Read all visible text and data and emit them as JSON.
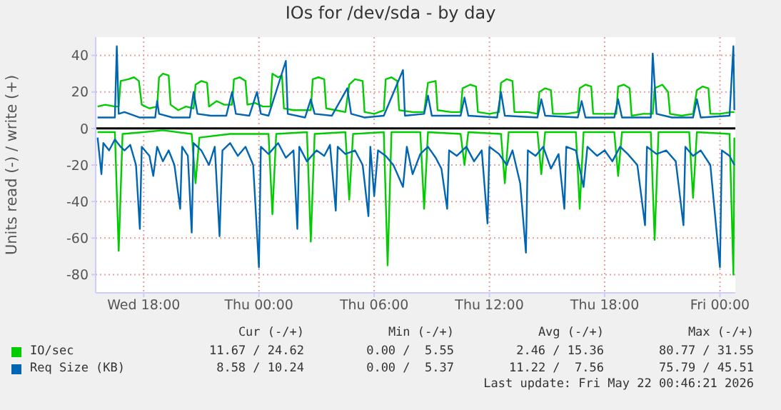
{
  "chart_data": {
    "type": "line",
    "title": "IOs for /dev/sda - by day",
    "ylabel": "Units read (-) / write (+)",
    "xlim": [
      "2026-05-20T15:30",
      "2026-05-22T00:48"
    ],
    "xticks": [
      {
        "value": "2026-05-20T18:00",
        "label": "Wed 18:00"
      },
      {
        "value": "2026-05-21T00:00",
        "label": "Thu 00:00"
      },
      {
        "value": "2026-05-21T06:00",
        "label": "Thu 06:00"
      },
      {
        "value": "2026-05-21T12:00",
        "label": "Thu 12:00"
      },
      {
        "value": "2026-05-21T18:00",
        "label": "Thu 18:00"
      },
      {
        "value": "2026-05-22T00:00",
        "label": "Fri 00:00"
      }
    ],
    "ylim": [
      -90,
      50
    ],
    "yticks": [
      -80,
      -60,
      -40,
      -20,
      0,
      20,
      40
    ],
    "grid": true,
    "legend": "bottom",
    "marker": "none",
    "line_style": "solid",
    "ref_lines": [
      {
        "axis": "y",
        "value": 0,
        "color": "#000000"
      }
    ],
    "annotations": [
      "Cur (-/+)",
      "Min (-/+)",
      "Avg (-/+)",
      "Max (-/+)",
      "11.67 / 24.62",
      "0.00 /  5.55",
      "2.46 / 15.36",
      "80.77 / 31.55",
      "8.58 / 10.24",
      "0.00 /  5.37",
      "11.22 /  7.56",
      "75.79 / 45.51",
      "Last update: Fri May 22 00:46:21 2026"
    ],
    "series": [
      {
        "name": "IO/sec",
        "color": "#00cc00",
        "x": [
          "2026-05-20T15:36",
          "2026-05-20T16:00",
          "2026-05-20T16:30",
          "2026-05-20T16:42",
          "2026-05-20T16:48",
          "2026-05-20T17:12",
          "2026-05-20T17:30",
          "2026-05-20T17:45",
          "2026-05-20T17:54",
          "2026-05-20T18:18",
          "2026-05-20T18:42",
          "2026-05-20T18:48",
          "2026-05-20T19:00",
          "2026-05-20T19:18",
          "2026-05-20T19:24",
          "2026-05-20T19:48",
          "2026-05-20T20:12",
          "2026-05-20T20:36",
          "2026-05-20T20:42",
          "2026-05-20T21:00",
          "2026-05-20T21:18",
          "2026-05-20T21:24",
          "2026-05-20T21:48",
          "2026-05-20T22:12",
          "2026-05-20T22:36",
          "2026-05-20T22:42",
          "2026-05-20T23:00",
          "2026-05-20T23:18",
          "2026-05-20T23:24",
          "2026-05-20T23:48",
          "2026-05-21T00:12",
          "2026-05-21T00:36",
          "2026-05-21T00:42",
          "2026-05-21T01:00",
          "2026-05-21T01:12",
          "2026-05-21T01:18",
          "2026-05-21T01:48",
          "2026-05-21T02:12",
          "2026-05-21T02:42",
          "2026-05-21T02:48",
          "2026-05-21T03:06",
          "2026-05-21T03:24",
          "2026-05-21T03:30",
          "2026-05-21T04:00",
          "2026-05-21T04:30",
          "2026-05-21T04:42",
          "2026-05-21T05:00",
          "2026-05-21T05:24",
          "2026-05-21T05:30",
          "2026-05-21T06:00",
          "2026-05-21T06:30",
          "2026-05-21T06:36",
          "2026-05-21T06:54",
          "2026-05-21T07:12",
          "2026-05-21T07:18",
          "2026-05-21T08:00",
          "2026-05-21T08:36",
          "2026-05-21T08:48",
          "2026-05-21T09:12",
          "2026-05-21T09:18",
          "2026-05-21T10:00",
          "2026-05-21T10:30",
          "2026-05-21T10:36",
          "2026-05-21T11:00",
          "2026-05-21T11:18",
          "2026-05-21T11:24",
          "2026-05-21T12:00",
          "2026-05-21T12:30",
          "2026-05-21T12:36",
          "2026-05-21T12:54",
          "2026-05-21T13:12",
          "2026-05-21T13:18",
          "2026-05-21T14:00",
          "2026-05-21T14:30",
          "2026-05-21T14:36",
          "2026-05-21T14:54",
          "2026-05-21T15:12",
          "2026-05-21T15:18",
          "2026-05-21T16:00",
          "2026-05-21T16:36",
          "2026-05-21T16:42",
          "2026-05-21T17:00",
          "2026-05-21T17:18",
          "2026-05-21T17:24",
          "2026-05-21T18:00",
          "2026-05-21T18:36",
          "2026-05-21T18:42",
          "2026-05-21T19:00",
          "2026-05-21T19:18",
          "2026-05-21T19:24",
          "2026-05-21T20:00",
          "2026-05-21T20:30",
          "2026-05-21T20:36",
          "2026-05-21T21:00",
          "2026-05-21T21:18",
          "2026-05-21T21:24",
          "2026-05-21T22:00",
          "2026-05-21T22:36",
          "2026-05-21T22:48",
          "2026-05-21T23:06",
          "2026-05-21T23:24",
          "2026-05-21T23:30",
          "2026-05-22T00:00",
          "2026-05-22T00:36",
          "2026-05-22T00:45"
        ],
        "values": [
          12,
          13,
          12,
          12,
          26,
          27,
          28,
          26,
          13,
          11,
          12,
          28,
          30,
          29,
          13,
          10,
          12,
          11,
          24,
          26,
          25,
          12,
          15,
          13,
          13,
          27,
          28,
          26,
          13,
          14,
          12,
          12,
          30,
          28,
          29,
          11,
          10,
          10,
          10,
          27,
          28,
          27,
          11,
          10,
          9,
          24,
          27,
          26,
          9,
          8,
          10,
          27,
          28,
          26,
          10,
          9,
          9,
          25,
          26,
          10,
          9,
          9,
          22,
          24,
          23,
          9,
          8,
          9,
          25,
          27,
          26,
          9,
          9,
          8,
          20,
          22,
          21,
          8,
          8,
          9,
          22,
          24,
          23,
          8,
          8,
          8,
          23,
          24,
          22,
          7,
          8,
          8,
          22,
          24,
          20,
          8,
          7,
          8,
          21,
          23,
          22,
          8,
          8,
          9,
          9
        ]
      },
      {
        "color": "#00cc00",
        "x": [
          "2026-05-20T15:36",
          "2026-05-20T16:30",
          "2026-05-20T16:42",
          "2026-05-20T16:54",
          "2026-05-20T18:00",
          "2026-05-20T19:00",
          "2026-05-20T20:30",
          "2026-05-20T20:42",
          "2026-05-20T20:54",
          "2026-05-20T22:30",
          "2026-05-21T00:30",
          "2026-05-21T00:42",
          "2026-05-21T00:54",
          "2026-05-21T02:30",
          "2026-05-21T02:42",
          "2026-05-21T02:54",
          "2026-05-21T04:30",
          "2026-05-21T04:42",
          "2026-05-21T04:54",
          "2026-05-21T06:30",
          "2026-05-21T06:42",
          "2026-05-21T06:54",
          "2026-05-21T08:24",
          "2026-05-21T08:36",
          "2026-05-21T08:48",
          "2026-05-21T10:30",
          "2026-05-21T10:42",
          "2026-05-21T10:54",
          "2026-05-21T12:36",
          "2026-05-21T12:48",
          "2026-05-21T13:00",
          "2026-05-21T14:30",
          "2026-05-21T14:42",
          "2026-05-21T14:54",
          "2026-05-21T16:30",
          "2026-05-21T16:42",
          "2026-05-21T16:54",
          "2026-05-21T18:30",
          "2026-05-21T18:42",
          "2026-05-21T18:54",
          "2026-05-21T20:24",
          "2026-05-21T20:36",
          "2026-05-21T20:48",
          "2026-05-21T22:24",
          "2026-05-21T22:36",
          "2026-05-21T22:48",
          "2026-05-22T00:30",
          "2026-05-22T00:42",
          "2026-05-22T00:45"
        ],
        "values": [
          -2,
          -2,
          -67,
          -3,
          -2,
          -1,
          -3,
          -30,
          -5,
          -3,
          -3,
          -47,
          -3,
          -2,
          -62,
          -3,
          -2,
          -39,
          -3,
          -2,
          -75,
          -2,
          -2,
          -44,
          -2,
          -3,
          -20,
          -2,
          -3,
          -30,
          -2,
          -2,
          -25,
          -2,
          -2,
          -44,
          -2,
          -2,
          -26,
          -2,
          -2,
          -61,
          -2,
          -2,
          -38,
          -2,
          -3,
          -80,
          -5
        ]
      },
      {
        "name": "Req Size (KB)",
        "color": "#0066b3",
        "x": [
          "2026-05-20T15:36",
          "2026-05-20T16:30",
          "2026-05-20T16:36",
          "2026-05-20T16:42",
          "2026-05-20T17:00",
          "2026-05-20T17:48",
          "2026-05-20T18:36",
          "2026-05-20T18:42",
          "2026-05-20T18:48",
          "2026-05-20T19:30",
          "2026-05-20T20:24",
          "2026-05-20T20:36",
          "2026-05-20T20:48",
          "2026-05-20T21:30",
          "2026-05-20T22:18",
          "2026-05-20T22:36",
          "2026-05-20T22:48",
          "2026-05-20T23:30",
          "2026-05-20T23:54",
          "2026-05-21T00:06",
          "2026-05-21T00:30",
          "2026-05-21T01:24",
          "2026-05-21T01:30",
          "2026-05-21T02:24",
          "2026-05-21T02:42",
          "2026-05-21T02:54",
          "2026-05-21T03:48",
          "2026-05-21T04:36",
          "2026-05-21T04:48",
          "2026-05-21T05:30",
          "2026-05-21T06:30",
          "2026-05-21T07:30",
          "2026-05-21T07:36",
          "2026-05-21T08:36",
          "2026-05-21T08:48",
          "2026-05-21T09:00",
          "2026-05-21T10:30",
          "2026-05-21T10:42",
          "2026-05-21T10:54",
          "2026-05-21T12:24",
          "2026-05-21T12:36",
          "2026-05-21T12:48",
          "2026-05-21T14:30",
          "2026-05-21T14:42",
          "2026-05-21T14:54",
          "2026-05-21T16:36",
          "2026-05-21T16:48",
          "2026-05-21T17:00",
          "2026-05-21T18:30",
          "2026-05-21T18:42",
          "2026-05-21T18:54",
          "2026-05-21T20:24",
          "2026-05-21T20:30",
          "2026-05-21T20:42",
          "2026-05-21T21:30",
          "2026-05-21T22:36",
          "2026-05-21T22:48",
          "2026-05-21T23:00",
          "2026-05-22T00:30",
          "2026-05-22T00:42",
          "2026-05-22T00:45"
        ],
        "values": [
          6,
          6,
          45,
          8,
          9,
          6,
          6,
          15,
          8,
          6,
          6,
          20,
          8,
          7,
          7,
          20,
          8,
          7,
          20,
          8,
          7,
          37,
          8,
          6,
          16,
          8,
          7,
          22,
          8,
          6,
          7,
          32,
          7,
          8,
          18,
          7,
          7,
          17,
          7,
          6,
          20,
          7,
          6,
          16,
          7,
          6,
          15,
          6,
          6,
          16,
          6,
          6,
          41,
          8,
          6,
          6,
          16,
          6,
          7,
          45,
          10
        ]
      },
      {
        "color": "#0066b3",
        "x": [
          "2026-05-20T15:36",
          "2026-05-20T15:42",
          "2026-05-20T15:48",
          "2026-05-20T15:54",
          "2026-05-20T16:12",
          "2026-05-20T16:30",
          "2026-05-20T16:48",
          "2026-05-20T17:00",
          "2026-05-20T17:18",
          "2026-05-20T17:36",
          "2026-05-20T17:48",
          "2026-05-20T17:54",
          "2026-05-20T18:18",
          "2026-05-20T18:30",
          "2026-05-20T18:42",
          "2026-05-20T19:00",
          "2026-05-20T19:18",
          "2026-05-20T19:36",
          "2026-05-20T19:54",
          "2026-05-20T20:00",
          "2026-05-20T20:18",
          "2026-05-20T20:30",
          "2026-05-20T20:36",
          "2026-05-20T21:00",
          "2026-05-20T21:24",
          "2026-05-20T21:42",
          "2026-05-20T21:57",
          "2026-05-20T22:06",
          "2026-05-20T22:30",
          "2026-05-20T22:54",
          "2026-05-20T23:18",
          "2026-05-20T23:42",
          "2026-05-21T00:00",
          "2026-05-21T00:06",
          "2026-05-21T00:30",
          "2026-05-21T01:00",
          "2026-05-21T01:24",
          "2026-05-21T01:48",
          "2026-05-21T02:00",
          "2026-05-21T02:06",
          "2026-05-21T02:30",
          "2026-05-21T03:00",
          "2026-05-21T03:24",
          "2026-05-21T03:42",
          "2026-05-21T04:00",
          "2026-05-21T04:06",
          "2026-05-21T04:30",
          "2026-05-21T05:00",
          "2026-05-21T05:24",
          "2026-05-21T05:42",
          "2026-05-21T05:48",
          "2026-05-21T06:00",
          "2026-05-21T06:12",
          "2026-05-21T06:36",
          "2026-05-21T07:00",
          "2026-05-21T07:30",
          "2026-05-21T07:42",
          "2026-05-21T08:00",
          "2026-05-21T08:24",
          "2026-05-21T08:48",
          "2026-05-21T09:12",
          "2026-05-21T09:30",
          "2026-05-21T09:48",
          "2026-05-21T09:54",
          "2026-05-21T10:18",
          "2026-05-21T10:48",
          "2026-05-21T11:12",
          "2026-05-21T11:36",
          "2026-05-21T11:54",
          "2026-05-21T12:00",
          "2026-05-21T12:30",
          "2026-05-21T12:54",
          "2026-05-21T13:12",
          "2026-05-21T13:36",
          "2026-05-21T13:54",
          "2026-05-21T14:00",
          "2026-05-21T14:24",
          "2026-05-21T14:48",
          "2026-05-21T15:12",
          "2026-05-21T15:36",
          "2026-05-21T15:54",
          "2026-05-21T16:00",
          "2026-05-21T16:30",
          "2026-05-21T16:54",
          "2026-05-21T17:06",
          "2026-05-21T17:36",
          "2026-05-21T18:00",
          "2026-05-21T18:24",
          "2026-05-21T18:48",
          "2026-05-21T19:12",
          "2026-05-21T19:42",
          "2026-05-21T20:06",
          "2026-05-21T20:12",
          "2026-05-21T20:42",
          "2026-05-21T21:12",
          "2026-05-21T21:42",
          "2026-05-21T22:06",
          "2026-05-21T22:12",
          "2026-05-21T22:36",
          "2026-05-21T23:00",
          "2026-05-21T23:30",
          "2026-05-22T00:00",
          "2026-05-22T00:06",
          "2026-05-22T00:30",
          "2026-05-22T00:45"
        ],
        "values": [
          -5,
          -15,
          -25,
          -8,
          -12,
          -6,
          -10,
          -12,
          -9,
          -20,
          -55,
          -10,
          -15,
          -26,
          -10,
          -18,
          -12,
          -20,
          -44,
          -10,
          -15,
          -57,
          -8,
          -12,
          -20,
          -10,
          -59,
          -12,
          -8,
          -15,
          -10,
          -20,
          -76,
          -10,
          -14,
          -8,
          -16,
          -12,
          -55,
          -10,
          -18,
          -12,
          -15,
          -9,
          -45,
          -10,
          -14,
          -12,
          -20,
          -48,
          -10,
          -37,
          -12,
          -15,
          -20,
          -32,
          -10,
          -25,
          -14,
          -10,
          -16,
          -22,
          -44,
          -12,
          -15,
          -10,
          -18,
          -12,
          -52,
          -10,
          -14,
          -20,
          -12,
          -30,
          -68,
          -12,
          -15,
          -10,
          -22,
          -14,
          -44,
          -10,
          -12,
          -32,
          -10,
          -15,
          -12,
          -18,
          -10,
          -14,
          -20,
          -53,
          -10,
          -14,
          -12,
          -18,
          -53,
          -10,
          -15,
          -12,
          -20,
          -76,
          -12,
          -15,
          -20
        ]
      }
    ]
  }
}
